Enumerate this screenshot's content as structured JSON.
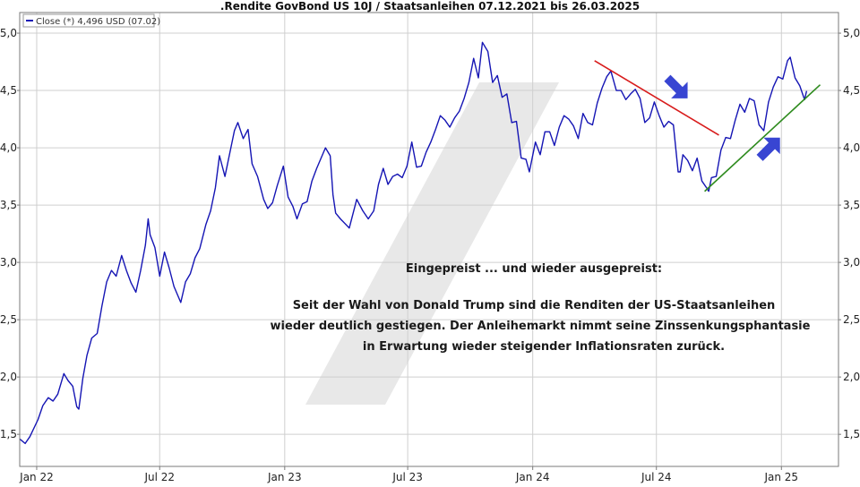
{
  "chart_data": {
    "type": "line",
    "title": ".Rendite GovBond US 10J / Staatsanleihen 07.12.2021 bis 26.03.2025",
    "legend": {
      "label": "Close (*) 4,496 USD (07.02)",
      "placement": "top-left"
    },
    "colors": {
      "series": "#1515b4",
      "grid": "#cfcfcf",
      "frame": "#7a7a7a",
      "trend_down": "#d81c1c",
      "trend_up": "#2e8b1e",
      "arrow": "#3845d2",
      "watermark": "#e8e8e8"
    },
    "ylim": [
      1.22,
      5.18
    ],
    "y_ticks": [
      1.5,
      2.0,
      2.5,
      3.0,
      3.5,
      4.0,
      4.5,
      5.0
    ],
    "y_tick_labels": [
      "1,5",
      "2,0",
      "2,5",
      "3,0",
      "3,5",
      "4,0",
      "4,5",
      "5,0"
    ],
    "xlim": [
      "2021-12-07",
      "2025-03-26"
    ],
    "x_ticks": [
      "2022-01-01",
      "2022-07-01",
      "2023-01-01",
      "2023-07-01",
      "2024-01-01",
      "2024-07-01",
      "2025-01-01"
    ],
    "x_tick_labels": [
      "Jan 22",
      "Jul 22",
      "Jan 23",
      "Jul 23",
      "Jan 24",
      "Jul 24",
      "Jan 25"
    ],
    "grid": true,
    "series": [
      {
        "x": [
          "2021-12-07",
          "2021-12-15",
          "2021-12-22",
          "2022-01-03",
          "2022-01-10",
          "2022-01-18",
          "2022-01-25",
          "2022-02-01",
          "2022-02-10",
          "2022-02-16",
          "2022-02-23",
          "2022-03-01",
          "2022-03-04",
          "2022-03-10",
          "2022-03-16",
          "2022-03-23",
          "2022-03-31",
          "2022-04-07",
          "2022-04-14",
          "2022-04-21",
          "2022-04-28",
          "2022-05-06",
          "2022-05-13",
          "2022-05-20",
          "2022-05-27",
          "2022-06-03",
          "2022-06-10",
          "2022-06-14",
          "2022-06-17",
          "2022-06-24",
          "2022-07-01",
          "2022-07-08",
          "2022-07-15",
          "2022-07-22",
          "2022-08-01",
          "2022-08-08",
          "2022-08-15",
          "2022-08-22",
          "2022-08-29",
          "2022-09-07",
          "2022-09-14",
          "2022-09-21",
          "2022-09-27",
          "2022-10-05",
          "2022-10-12",
          "2022-10-19",
          "2022-10-24",
          "2022-11-01",
          "2022-11-08",
          "2022-11-14",
          "2022-11-22",
          "2022-12-01",
          "2022-12-07",
          "2022-12-14",
          "2022-12-21",
          "2022-12-30",
          "2023-01-06",
          "2023-01-13",
          "2023-01-19",
          "2023-01-27",
          "2023-02-03",
          "2023-02-10",
          "2023-02-17",
          "2023-03-02",
          "2023-03-09",
          "2023-03-13",
          "2023-03-17",
          "2023-03-24",
          "2023-04-06",
          "2023-04-17",
          "2023-04-26",
          "2023-05-04",
          "2023-05-12",
          "2023-05-19",
          "2023-05-26",
          "2023-06-02",
          "2023-06-09",
          "2023-06-16",
          "2023-06-23",
          "2023-06-30",
          "2023-07-07",
          "2023-07-14",
          "2023-07-21",
          "2023-07-28",
          "2023-08-04",
          "2023-08-11",
          "2023-08-18",
          "2023-08-25",
          "2023-09-01",
          "2023-09-08",
          "2023-09-15",
          "2023-09-22",
          "2023-09-29",
          "2023-10-06",
          "2023-10-13",
          "2023-10-19",
          "2023-10-27",
          "2023-11-03",
          "2023-11-10",
          "2023-11-17",
          "2023-11-24",
          "2023-12-01",
          "2023-12-08",
          "2023-12-15",
          "2023-12-22",
          "2023-12-27",
          "2024-01-05",
          "2024-01-12",
          "2024-01-19",
          "2024-01-26",
          "2024-02-02",
          "2024-02-09",
          "2024-02-16",
          "2024-02-23",
          "2024-03-01",
          "2024-03-08",
          "2024-03-15",
          "2024-03-22",
          "2024-03-29",
          "2024-04-05",
          "2024-04-12",
          "2024-04-19",
          "2024-04-25",
          "2024-05-03",
          "2024-05-10",
          "2024-05-17",
          "2024-05-24",
          "2024-05-31",
          "2024-06-07",
          "2024-06-14",
          "2024-06-21",
          "2024-06-28",
          "2024-07-05",
          "2024-07-12",
          "2024-07-19",
          "2024-07-26",
          "2024-08-02",
          "2024-08-05",
          "2024-08-09",
          "2024-08-16",
          "2024-08-23",
          "2024-08-30",
          "2024-09-06",
          "2024-09-13",
          "2024-09-16",
          "2024-09-20",
          "2024-09-27",
          "2024-10-04",
          "2024-10-11",
          "2024-10-18",
          "2024-10-25",
          "2024-11-01",
          "2024-11-08",
          "2024-11-15",
          "2024-11-22",
          "2024-11-29",
          "2024-12-06",
          "2024-12-13",
          "2024-12-20",
          "2024-12-27",
          "2025-01-03",
          "2025-01-10",
          "2025-01-14",
          "2025-01-21",
          "2025-01-28",
          "2025-02-04",
          "2025-02-07"
        ],
        "y": [
          1.46,
          1.42,
          1.48,
          1.63,
          1.75,
          1.82,
          1.79,
          1.85,
          2.03,
          1.97,
          1.92,
          1.74,
          1.72,
          1.99,
          2.19,
          2.34,
          2.38,
          2.62,
          2.83,
          2.93,
          2.88,
          3.06,
          2.93,
          2.82,
          2.74,
          2.93,
          3.15,
          3.38,
          3.24,
          3.13,
          2.88,
          3.09,
          2.95,
          2.79,
          2.65,
          2.83,
          2.9,
          3.04,
          3.12,
          3.33,
          3.45,
          3.65,
          3.93,
          3.75,
          3.95,
          4.15,
          4.22,
          4.08,
          4.16,
          3.86,
          3.75,
          3.55,
          3.47,
          3.52,
          3.67,
          3.84,
          3.57,
          3.49,
          3.38,
          3.51,
          3.53,
          3.71,
          3.82,
          4.0,
          3.93,
          3.59,
          3.43,
          3.38,
          3.3,
          3.55,
          3.45,
          3.38,
          3.45,
          3.68,
          3.82,
          3.68,
          3.75,
          3.77,
          3.74,
          3.84,
          4.05,
          3.83,
          3.84,
          3.96,
          4.05,
          4.16,
          4.28,
          4.24,
          4.18,
          4.26,
          4.32,
          4.43,
          4.57,
          4.78,
          4.61,
          4.92,
          4.84,
          4.57,
          4.63,
          4.44,
          4.47,
          4.22,
          4.23,
          3.91,
          3.9,
          3.79,
          4.05,
          3.94,
          4.14,
          4.14,
          4.02,
          4.18,
          4.28,
          4.25,
          4.19,
          4.08,
          4.3,
          4.22,
          4.2,
          4.39,
          4.52,
          4.62,
          4.67,
          4.5,
          4.5,
          4.42,
          4.47,
          4.51,
          4.43,
          4.22,
          4.26,
          4.4,
          4.28,
          4.18,
          4.23,
          4.2,
          3.79,
          3.79,
          3.94,
          3.89,
          3.8,
          3.91,
          3.71,
          3.65,
          3.62,
          3.74,
          3.75,
          3.98,
          4.09,
          4.08,
          4.24,
          4.38,
          4.31,
          4.43,
          4.41,
          4.2,
          4.15,
          4.4,
          4.53,
          4.62,
          4.6,
          4.76,
          4.79,
          4.61,
          4.54,
          4.42,
          4.496
        ]
      }
    ],
    "trendlines": [
      {
        "name": "down",
        "from": [
          "2024-04-01",
          4.76
        ],
        "to": [
          "2024-10-01",
          4.11
        ]
      },
      {
        "name": "up",
        "from": [
          "2024-09-10",
          3.62
        ],
        "to": [
          "2025-02-27",
          4.55
        ]
      }
    ],
    "arrows": [
      {
        "direction": "down-right",
        "at": [
          "2024-08-01",
          4.52
        ]
      },
      {
        "direction": "up-right",
        "at": [
          "2024-12-15",
          4.0
        ]
      }
    ],
    "annotation": {
      "heading": "Eingepreist ... und wieder ausgepreist:",
      "lines": [
        "Seit der Wahl von Donald Trump sind die Renditen der US-Staatsanleihen",
        "wieder deutlich gestiegen. Der Anleihemarkt nimmt seine Zinssenkungsphantasie",
        "in Erwartung wieder steigender Inflationsraten zurück."
      ]
    }
  }
}
